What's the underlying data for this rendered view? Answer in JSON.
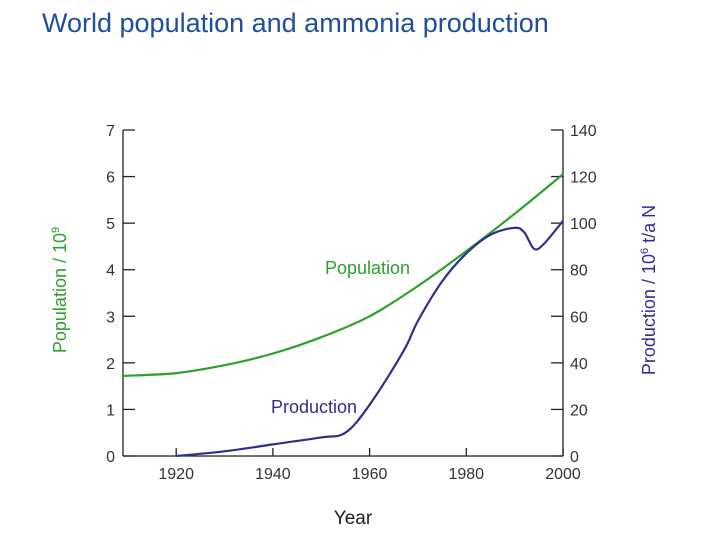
{
  "slide": {
    "title": "World population and ammonia production"
  },
  "colors": {
    "population": "#2ca02c",
    "production": "#2d2f8f",
    "title": "#1f4e9c",
    "axis": "#222222"
  },
  "chart_data": {
    "type": "line",
    "xlabel": "Year",
    "ylabel_left": "Population / 10^9",
    "ylabel_right": "Production / 10^6 t/a N",
    "xlim": [
      1909,
      2000
    ],
    "ylim_left": [
      0,
      7
    ],
    "ylim_right": [
      0,
      140
    ],
    "x_ticks": [
      1920,
      1940,
      1960,
      1980,
      2000
    ],
    "y_ticks_left": [
      0,
      1,
      2,
      3,
      4,
      5,
      6,
      7
    ],
    "y_ticks_right": [
      0,
      20,
      40,
      60,
      80,
      100,
      120,
      140
    ],
    "grid": false,
    "series": [
      {
        "name": "Population",
        "axis": "left",
        "x": [
          1909,
          1920,
          1930,
          1940,
          1950,
          1960,
          1970,
          1980,
          1990,
          2000
        ],
        "y": [
          1.72,
          1.78,
          1.95,
          2.2,
          2.55,
          3.0,
          3.65,
          4.4,
          5.2,
          6.05
        ]
      },
      {
        "name": "Production",
        "axis": "right",
        "x": [
          1920,
          1930,
          1940,
          1950,
          1955,
          1960,
          1967,
          1970,
          1975,
          1980,
          1985,
          1990,
          1992,
          1994,
          1996,
          2000
        ],
        "y": [
          0,
          2,
          5,
          8,
          10,
          22,
          45,
          58,
          75,
          87,
          95,
          98,
          96,
          89,
          91,
          101
        ]
      }
    ]
  }
}
